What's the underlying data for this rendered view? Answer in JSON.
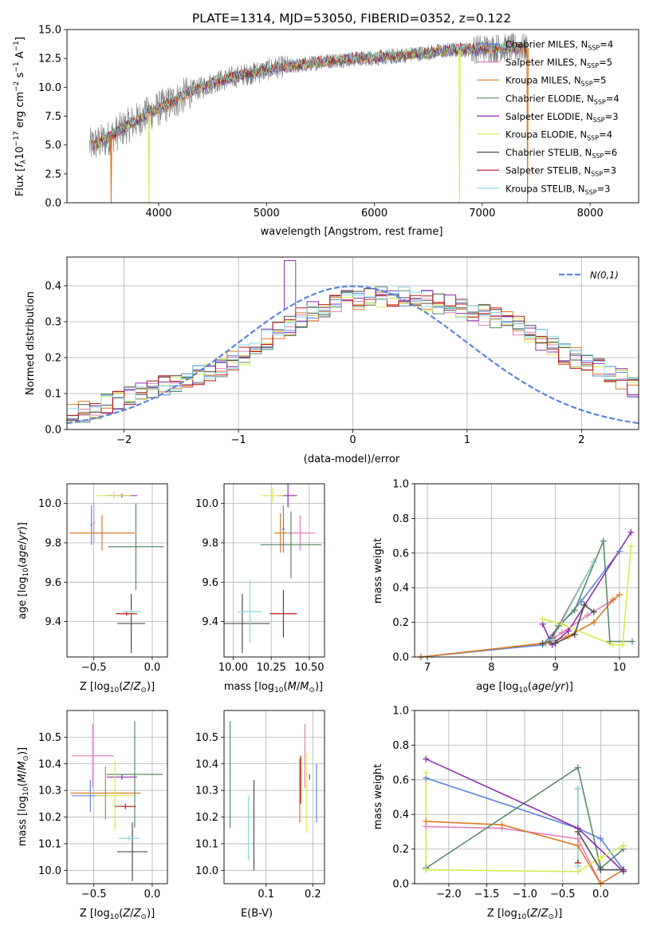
{
  "title": "PLATE=1314, MJD=53050, FIBERID=0352, z=0.122",
  "colors": {
    "Chabrier MILES": "#5b84d8",
    "Salpeter MILES": "#e07fbf",
    "Kroupa MILES": "#d97b22",
    "Chabrier ELODIE": "#5a8a65",
    "Salpeter ELODIE": "#8d2fb0",
    "Kroupa ELODIE": "#d8ea4f",
    "Chabrier STELIB": "#4a4a4a",
    "Salpeter STELIB": "#b81818",
    "Kroupa STELIB": "#86d8df",
    "gaussian": "#5b84d8",
    "data": "#7a7a7a"
  },
  "chart_data": [
    {
      "id": "spectrum",
      "type": "line",
      "title": "PLATE=1314, MJD=53050, FIBERID=0352, z=0.122",
      "xlabel": "wavelength [Angstrom, rest frame]",
      "ylabel": "Flux [f_λ 10^-17 erg cm^-2 s^-1 A^-1]",
      "xlim": [
        3150,
        8450
      ],
      "ylim": [
        0,
        15
      ],
      "xticks": [
        4000,
        5000,
        6000,
        7000,
        8000
      ],
      "yticks": [
        0.0,
        2.5,
        5.0,
        7.5,
        10.0,
        12.5,
        15.0
      ],
      "grid": false,
      "legend_position": "top-right",
      "legend": [
        {
          "label": "Chabrier MILES, N",
          "sub": "SSP",
          "n": "=4"
        },
        {
          "label": "Salpeter MILES, N",
          "sub": "SSP",
          "n": "=5"
        },
        {
          "label": "Kroupa MILES, N",
          "sub": "SSP",
          "n": "=5"
        },
        {
          "label": "Chabrier ELODIE, N",
          "sub": "SSP",
          "n": "=4"
        },
        {
          "label": "Salpeter ELODIE, N",
          "sub": "SSP",
          "n": "=3"
        },
        {
          "label": "Kroupa ELODIE, N",
          "sub": "SSP",
          "n": "=4"
        },
        {
          "label": "Chabrier STELIB, N",
          "sub": "SSP",
          "n": "=6"
        },
        {
          "label": "Salpeter STELIB, N",
          "sub": "SSP",
          "n": "=3"
        },
        {
          "label": "Kroupa STELIB, N",
          "sub": "SSP",
          "n": "=3"
        }
      ],
      "continuum": {
        "x": [
          3350,
          3500,
          3700,
          3900,
          4100,
          4300,
          4500,
          4700,
          4900,
          5100,
          5300,
          5500,
          5700,
          5900,
          6100,
          6300,
          6500,
          6700,
          6900,
          7100,
          7300,
          7400
        ],
        "y": [
          4.9,
          5.4,
          6.6,
          7.7,
          8.6,
          9.6,
          10.4,
          10.9,
          11.3,
          11.7,
          11.9,
          12.2,
          12.4,
          12.5,
          12.6,
          12.8,
          13.0,
          13.2,
          13.3,
          13.4,
          13.4,
          13.4
        ]
      },
      "data_extent": [
        3360,
        7420
      ],
      "model_dips": [
        {
          "series": "Kroupa MILES",
          "x": 3560
        },
        {
          "series": "Kroupa ELODIE",
          "x": 3910
        },
        {
          "series": "Kroupa ELODIE",
          "x": 6790
        },
        {
          "series": "Kroupa MILES",
          "x": 7420
        }
      ]
    },
    {
      "id": "residuals",
      "type": "histogram",
      "xlabel": "(data-model)/error",
      "ylabel": "Normed distribution",
      "xlim": [
        -2.5,
        2.5
      ],
      "ylim": [
        0,
        0.48
      ],
      "xticks": [
        -2,
        -1,
        0,
        1,
        2
      ],
      "yticks": [
        0.0,
        0.1,
        0.2,
        0.3,
        0.4
      ],
      "grid": true,
      "legend_position": "top-right",
      "gaussian_label": "N(0,1)",
      "bin_width": 0.1,
      "envelope": [
        0.04,
        0.05,
        0.06,
        0.07,
        0.08,
        0.09,
        0.1,
        0.11,
        0.12,
        0.13,
        0.14,
        0.15,
        0.16,
        0.17,
        0.19,
        0.21,
        0.23,
        0.25,
        0.27,
        0.29,
        0.31,
        0.33,
        0.34,
        0.35,
        0.36,
        0.36,
        0.37,
        0.37,
        0.37,
        0.37,
        0.36,
        0.36,
        0.35,
        0.35,
        0.34,
        0.33,
        0.32,
        0.31,
        0.3,
        0.29,
        0.27,
        0.25,
        0.23,
        0.21,
        0.2,
        0.18,
        0.17,
        0.15,
        0.14,
        0.12
      ]
    },
    {
      "id": "age-vs-z",
      "type": "errorbar",
      "xlabel": "Z [log10(Z/Z☉)]",
      "ylabel": "age [log10(age/yr)]",
      "xlim": [
        -0.73,
        0.13
      ],
      "ylim": [
        9.22,
        10.1
      ],
      "xticks": [
        -0.5,
        0.0
      ],
      "yticks": [
        9.4,
        9.6,
        9.8,
        10.0
      ],
      "grid": true,
      "points": [
        {
          "s": "Chabrier MILES",
          "x": -0.52,
          "y": 9.89,
          "xerr": 0.01,
          "yerr": 0.1
        },
        {
          "s": "Salpeter MILES",
          "x": -0.5,
          "y": 9.9,
          "xerr": 0.01,
          "yerr": 0.1
        },
        {
          "s": "Kroupa MILES",
          "x": -0.43,
          "y": 9.85,
          "xerr": 0.28,
          "yerr": 0.09
        },
        {
          "s": "Chabrier ELODIE",
          "x": -0.14,
          "y": 9.78,
          "xerr": 0.24,
          "yerr": 0.22
        },
        {
          "s": "Salpeter ELODIE",
          "x": -0.26,
          "y": 10.04,
          "xerr": 0.13,
          "yerr": 0.01
        },
        {
          "s": "Kroupa ELODIE",
          "x": -0.33,
          "y": 10.04,
          "xerr": 0.15,
          "yerr": 0.02
        },
        {
          "s": "Chabrier STELIB",
          "x": -0.18,
          "y": 9.39,
          "xerr": 0.12,
          "yerr": 0.15
        },
        {
          "s": "Salpeter STELIB",
          "x": -0.22,
          "y": 9.44,
          "xerr": 0.09,
          "yerr": 0.01
        },
        {
          "s": "Kroupa STELIB",
          "x": -0.18,
          "y": 9.45,
          "xerr": 0.08,
          "yerr": 0.01
        }
      ]
    },
    {
      "id": "age-vs-mass",
      "type": "errorbar",
      "xlabel": "mass [log10(M/M☉)]",
      "ylabel": "",
      "xlim": [
        9.94,
        10.6
      ],
      "ylim": [
        9.22,
        10.1
      ],
      "xticks": [
        10.0,
        10.25,
        10.5
      ],
      "yticks": [
        9.4,
        9.6,
        9.8,
        10.0
      ],
      "grid": true,
      "points": [
        {
          "s": "Chabrier MILES",
          "x": 10.33,
          "y": 9.87,
          "xerr": 0.01,
          "yerr": 0.12
        },
        {
          "s": "Salpeter MILES",
          "x": 10.44,
          "y": 9.85,
          "xerr": 0.1,
          "yerr": 0.09
        },
        {
          "s": "Kroupa MILES",
          "x": 10.31,
          "y": 9.85,
          "xerr": 0.04,
          "yerr": 0.1
        },
        {
          "s": "Chabrier ELODIE",
          "x": 10.38,
          "y": 9.79,
          "xerr": 0.2,
          "yerr": 0.17
        },
        {
          "s": "Salpeter ELODIE",
          "x": 10.36,
          "y": 10.04,
          "xerr": 0.06,
          "yerr": 0.06
        },
        {
          "s": "Kroupa ELODIE",
          "x": 10.26,
          "y": 10.04,
          "xerr": 0.07,
          "yerr": 0.04
        },
        {
          "s": "Chabrier STELIB",
          "x": 10.06,
          "y": 9.39,
          "xerr": 0.18,
          "yerr": 0.15
        },
        {
          "s": "Salpeter STELIB",
          "x": 10.33,
          "y": 9.44,
          "xerr": 0.09,
          "yerr": 0.12
        },
        {
          "s": "Kroupa STELIB",
          "x": 10.11,
          "y": 9.45,
          "xerr": 0.08,
          "yerr": 0.16
        }
      ]
    },
    {
      "id": "weight-vs-age",
      "type": "line",
      "xlabel": "age [log10(age/yr)]",
      "ylabel": "mass weight",
      "xlim": [
        6.8,
        10.3
      ],
      "ylim": [
        0,
        1
      ],
      "xticks": [
        7,
        8,
        9,
        10
      ],
      "yticks": [
        0.0,
        0.2,
        0.4,
        0.6,
        0.8,
        1.0
      ],
      "grid": true,
      "series": [
        {
          "name": "Chabrier MILES",
          "x": [
            6.9,
            8.8,
            9.4,
            10.0
          ],
          "y": [
            0.0,
            0.07,
            0.32,
            0.61
          ]
        },
        {
          "name": "Salpeter MILES",
          "x": [
            6.9,
            8.85,
            9.1,
            9.5,
            9.9
          ],
          "y": [
            0.0,
            0.08,
            0.14,
            0.24,
            0.33
          ]
        },
        {
          "name": "Kroupa MILES",
          "x": [
            6.9,
            8.85,
            9.2,
            9.6,
            9.9,
            10.0
          ],
          "y": [
            0.0,
            0.08,
            0.12,
            0.2,
            0.33,
            0.36
          ]
        },
        {
          "name": "Chabrier ELODIE",
          "x": [
            8.9,
            9.05,
            9.3,
            9.75,
            9.85,
            10.2
          ],
          "y": [
            0.09,
            0.18,
            0.27,
            0.67,
            0.09,
            0.09
          ]
        },
        {
          "name": "Salpeter ELODIE",
          "x": [
            8.8,
            8.95,
            9.2,
            10.18
          ],
          "y": [
            0.19,
            0.07,
            0.15,
            0.72
          ]
        },
        {
          "name": "Kroupa ELODIE",
          "x": [
            8.8,
            9.1,
            9.9,
            10.05,
            10.18
          ],
          "y": [
            0.22,
            0.19,
            0.07,
            0.07,
            0.64
          ]
        },
        {
          "name": "Chabrier STELIB",
          "x": [
            8.8,
            9.0,
            9.3,
            9.45,
            9.6
          ],
          "y": [
            0.08,
            0.08,
            0.13,
            0.3,
            0.26
          ]
        },
        {
          "name": "Salpeter STELIB",
          "x": [
            8.95,
            9.6
          ],
          "y": [
            0.11,
            0.55
          ]
        },
        {
          "name": "Kroupa STELIB",
          "x": [
            8.95,
            9.6
          ],
          "y": [
            0.1,
            0.55
          ]
        }
      ]
    },
    {
      "id": "mass-vs-z",
      "type": "errorbar",
      "xlabel": "Z [log10(Z/Z☉)]",
      "ylabel": "mass [log10(M/M☉)]",
      "xlim": [
        -0.73,
        0.13
      ],
      "ylim": [
        9.95,
        10.6
      ],
      "xticks": [
        -0.5,
        0.0
      ],
      "yticks": [
        10.0,
        10.1,
        10.2,
        10.3,
        10.4,
        10.5
      ],
      "grid": true,
      "points": [
        {
          "s": "Chabrier MILES",
          "x": -0.53,
          "y": 10.28,
          "xerr": 0.16,
          "yerr": 0.06
        },
        {
          "s": "Salpeter MILES",
          "x": -0.51,
          "y": 10.43,
          "xerr": 0.18,
          "yerr": 0.12
        },
        {
          "s": "Kroupa MILES",
          "x": -0.4,
          "y": 10.29,
          "xerr": 0.3,
          "yerr": 0.1
        },
        {
          "s": "Chabrier ELODIE",
          "x": -0.15,
          "y": 10.36,
          "xerr": 0.24,
          "yerr": 0.2
        },
        {
          "s": "Salpeter ELODIE",
          "x": -0.26,
          "y": 10.35,
          "xerr": 0.13,
          "yerr": 0.01
        },
        {
          "s": "Kroupa ELODIE",
          "x": -0.32,
          "y": 10.28,
          "xerr": 0.16,
          "yerr": 0.13
        },
        {
          "s": "Chabrier STELIB",
          "x": -0.17,
          "y": 10.07,
          "xerr": 0.13,
          "yerr": 0.11
        },
        {
          "s": "Salpeter STELIB",
          "x": -0.23,
          "y": 10.24,
          "xerr": 0.09,
          "yerr": 0.01
        },
        {
          "s": "Kroupa STELIB",
          "x": -0.2,
          "y": 10.12,
          "xerr": 0.09,
          "yerr": 0.01
        }
      ]
    },
    {
      "id": "mass-vs-ebv",
      "type": "errorbar",
      "xlabel": "E(B-V)",
      "ylabel": "",
      "xlim": [
        0.01,
        0.225
      ],
      "ylim": [
        9.95,
        10.6
      ],
      "xticks": [
        0.1,
        0.2
      ],
      "yticks": [
        10.0,
        10.1,
        10.2,
        10.3,
        10.4,
        10.5
      ],
      "grid": true,
      "points": [
        {
          "s": "Chabrier MILES",
          "x": 0.208,
          "y": 10.29,
          "xerr": 0.001,
          "yerr": 0.11
        },
        {
          "s": "Salpeter MILES",
          "x": 0.183,
          "y": 10.43,
          "xerr": 0.001,
          "yerr": 0.12
        },
        {
          "s": "Kroupa MILES",
          "x": 0.172,
          "y": 10.3,
          "xerr": 0.001,
          "yerr": 0.12
        },
        {
          "s": "Chabrier ELODIE",
          "x": 0.023,
          "y": 10.36,
          "xerr": 0.001,
          "yerr": 0.2
        },
        {
          "s": "Salpeter ELODIE",
          "x": 0.193,
          "y": 10.35,
          "xerr": 0.001,
          "yerr": 0.01
        },
        {
          "s": "Kroupa ELODIE",
          "x": 0.187,
          "y": 10.29,
          "xerr": 0.001,
          "yerr": 0.15
        },
        {
          "s": "Chabrier STELIB",
          "x": 0.074,
          "y": 10.17,
          "xerr": 0.001,
          "yerr": 0.17
        },
        {
          "s": "Salpeter STELIB",
          "x": 0.174,
          "y": 10.34,
          "xerr": 0.001,
          "yerr": 0.09
        },
        {
          "s": "Kroupa STELIB",
          "x": 0.062,
          "y": 10.16,
          "xerr": 0.001,
          "yerr": 0.12
        }
      ]
    },
    {
      "id": "weight-vs-z",
      "type": "line",
      "xlabel": "Z [log10(Z/Z☉)]",
      "ylabel": "mass weight",
      "xlim": [
        -2.45,
        0.5
      ],
      "ylim": [
        0,
        1
      ],
      "xticks": [
        -2.0,
        -1.5,
        -1.0,
        -0.5,
        0.0
      ],
      "yticks": [
        0.0,
        0.2,
        0.4,
        0.6,
        0.8,
        1.0
      ],
      "grid": true,
      "series": [
        {
          "name": "Chabrier MILES",
          "x": [
            -2.3,
            -0.3,
            0.0,
            0.3
          ],
          "y": [
            0.61,
            0.32,
            0.26,
            0.08
          ]
        },
        {
          "name": "Salpeter MILES",
          "x": [
            -2.3,
            -1.3,
            -0.3,
            0.0
          ],
          "y": [
            0.33,
            0.32,
            0.26,
            0.0
          ]
        },
        {
          "name": "Kroupa MILES",
          "x": [
            -2.3,
            -1.3,
            -0.3,
            0.0,
            0.3
          ],
          "y": [
            0.36,
            0.34,
            0.22,
            0.0,
            0.08
          ]
        },
        {
          "name": "Chabrier ELODIE",
          "x": [
            -2.3,
            -0.3,
            0.0,
            0.3
          ],
          "y": [
            0.09,
            0.67,
            0.09,
            0.2
          ]
        },
        {
          "name": "Salpeter ELODIE",
          "x": [
            -2.3,
            -0.3,
            0.3
          ],
          "y": [
            0.72,
            0.32,
            0.07
          ]
        },
        {
          "name": "Kroupa ELODIE",
          "x": [
            -2.3,
            -2.3,
            -0.3,
            0.0,
            0.3
          ],
          "y": [
            0.64,
            0.08,
            0.07,
            0.15,
            0.22
          ]
        },
        {
          "name": "Chabrier STELIB",
          "x": [
            -0.3,
            0.0,
            0.3
          ],
          "y": [
            0.3,
            0.08,
            0.08
          ]
        },
        {
          "name": "Salpeter STELIB",
          "x": [
            -0.3,
            -0.3
          ],
          "y": [
            0.55,
            0.12
          ]
        },
        {
          "name": "Kroupa STELIB",
          "x": [
            -0.3,
            -0.3
          ],
          "y": [
            0.55,
            0.1
          ]
        }
      ]
    }
  ]
}
